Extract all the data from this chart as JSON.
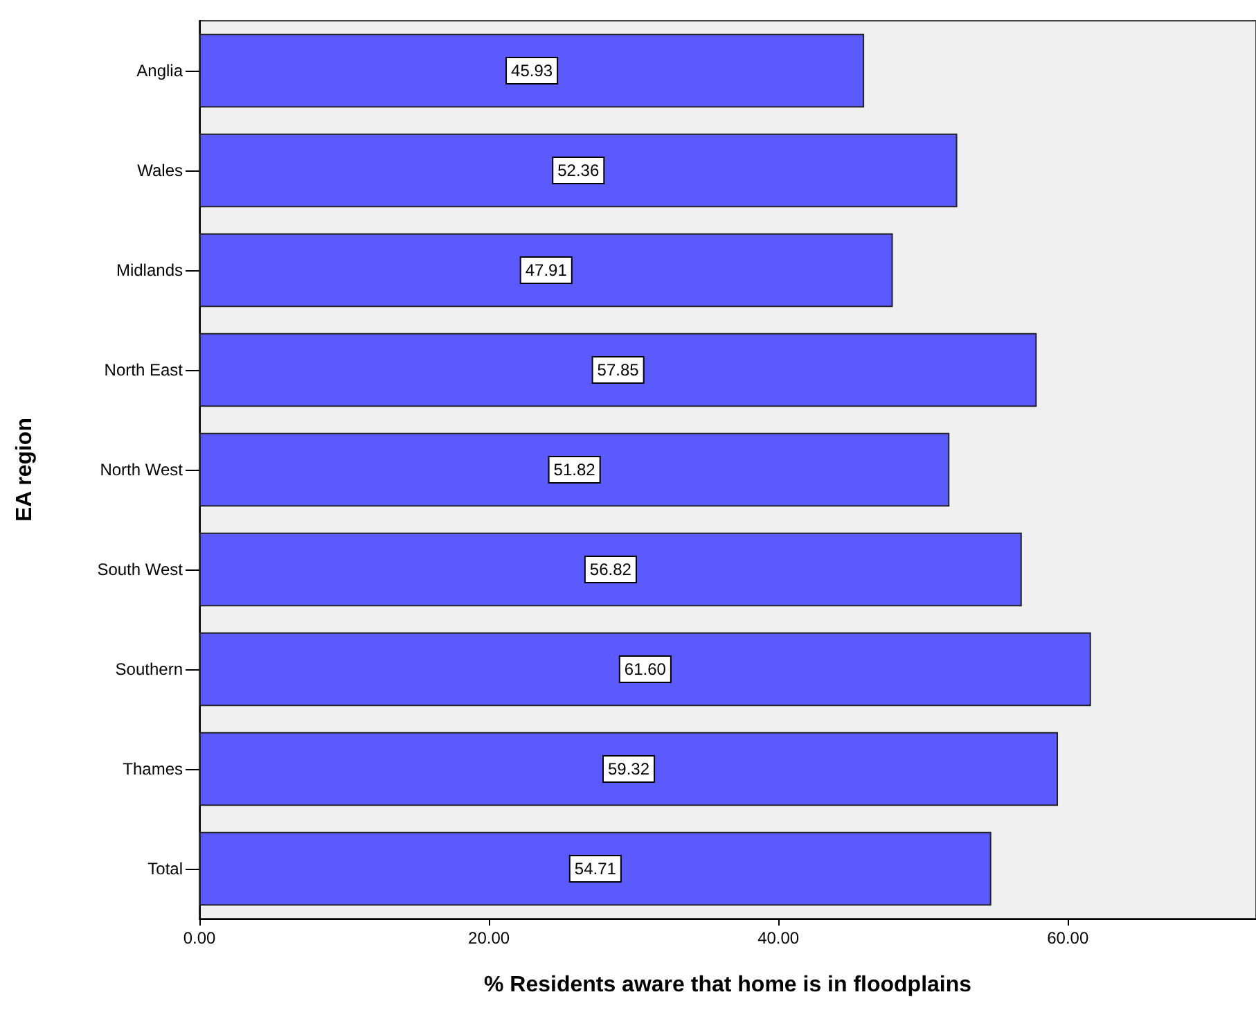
{
  "chart_data": {
    "type": "bar",
    "orientation": "horizontal",
    "xlabel": "% Residents aware that home is in floodplains",
    "ylabel": "EA region",
    "categories": [
      "Anglia",
      "Wales",
      "Midlands",
      "North East",
      "North West",
      "South West",
      "Southern",
      "Thames",
      "Total"
    ],
    "values": [
      45.93,
      52.36,
      47.91,
      57.85,
      51.82,
      56.82,
      61.6,
      59.32,
      54.71
    ],
    "value_labels": [
      "45.93",
      "52.36",
      "47.91",
      "57.85",
      "51.82",
      "56.82",
      "61.60",
      "59.32",
      "54.71"
    ],
    "color": "#5a5aff",
    "xlim": [
      0,
      73
    ],
    "xticks": [
      {
        "value": 0,
        "label": "0.00"
      },
      {
        "value": 20,
        "label": "20.00"
      },
      {
        "value": 40,
        "label": "40.00"
      },
      {
        "value": 60,
        "label": "60.00"
      }
    ],
    "grid": false
  }
}
